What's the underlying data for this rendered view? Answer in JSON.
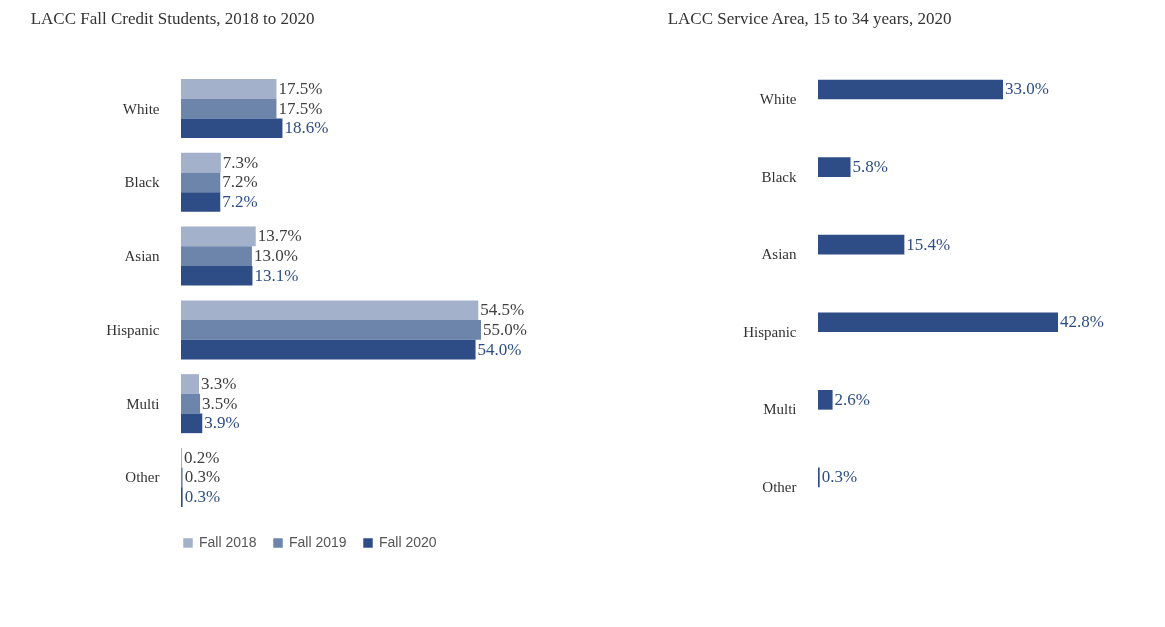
{
  "chart_data": [
    {
      "type": "bar",
      "orientation": "horizontal",
      "title": "LACC Fall Credit Students, 2018 to 2020",
      "categories": [
        "White",
        "Black",
        "Asian",
        "Hispanic",
        "Multi",
        "Other"
      ],
      "legend": "bottom",
      "series": [
        {
          "name": "Fall 2018",
          "color": "#a3b1cb",
          "values": [
            17.5,
            7.3,
            13.7,
            54.5,
            3.3,
            0.2
          ],
          "value_labels": [
            "17.5%",
            "7.3%",
            "13.7%",
            "54.5%",
            "3.3%",
            "0.2%"
          ]
        },
        {
          "name": "Fall 2019",
          "color": "#6d84ab",
          "values": [
            17.5,
            7.2,
            13.0,
            55.0,
            3.5,
            0.3
          ],
          "value_labels": [
            "17.5%",
            "7.2%",
            "13.0%",
            "55.0%",
            "3.5%",
            "0.3%"
          ]
        },
        {
          "name": "Fall 2020",
          "color": "#2e4d86",
          "values": [
            18.6,
            7.2,
            13.1,
            54.0,
            3.9,
            0.3
          ],
          "value_labels": [
            "18.6%",
            "7.2%",
            "13.1%",
            "54.0%",
            "3.9%",
            "0.3%"
          ]
        }
      ]
    },
    {
      "type": "bar",
      "orientation": "horizontal",
      "title": "LACC Service  Area, 15 to 34 years, 2020",
      "categories": [
        "White",
        "Black",
        "Asian",
        "Hispanic",
        "Multi",
        "Other"
      ],
      "series": [
        {
          "color": "#2e4d86",
          "values": [
            33.0,
            5.8,
            15.4,
            42.8,
            2.6,
            0.3
          ],
          "value_labels": [
            "33.0%",
            "5.8%",
            "15.4%",
            "42.8%",
            "2.6%",
            "0.3%"
          ]
        }
      ]
    }
  ]
}
